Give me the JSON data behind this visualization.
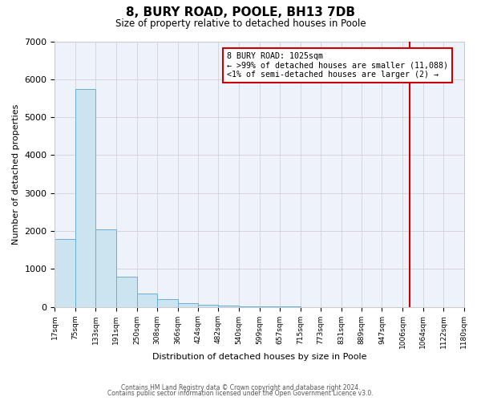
{
  "title": "8, BURY ROAD, POOLE, BH13 7DB",
  "subtitle": "Size of property relative to detached houses in Poole",
  "xlabel": "Distribution of detached houses by size in Poole",
  "ylabel": "Number of detached properties",
  "bar_values": [
    1780,
    5750,
    2050,
    800,
    350,
    200,
    100,
    55,
    25,
    15,
    8,
    3,
    0,
    0,
    0,
    0,
    0,
    0,
    0,
    0
  ],
  "bar_labels": [
    "17sqm",
    "75sqm",
    "133sqm",
    "191sqm",
    "250sqm",
    "308sqm",
    "366sqm",
    "424sqm",
    "482sqm",
    "540sqm",
    "599sqm",
    "657sqm",
    "715sqm",
    "773sqm",
    "831sqm",
    "889sqm",
    "947sqm",
    "1006sqm",
    "1064sqm",
    "1122sqm",
    "1180sqm"
  ],
  "bar_color": "#cce4f0",
  "bar_edge_color": "#6aaed6",
  "ylim": [
    0,
    7000
  ],
  "yticks": [
    0,
    1000,
    2000,
    3000,
    4000,
    5000,
    6000,
    7000
  ],
  "property_line_x": 1025,
  "property_line_label": "8 BURY ROAD: 1025sqm",
  "annotation_line1": "← >99% of detached houses are smaller (11,088)",
  "annotation_line2": "<1% of semi-detached houses are larger (2) →",
  "vline_color": "#cc0000",
  "annotation_box_color": "#cc0000",
  "footer_line1": "Contains HM Land Registry data © Crown copyright and database right 2024.",
  "footer_line2": "Contains public sector information licensed under the Open Government Licence v3.0.",
  "bin_edges": [
    17,
    75,
    133,
    191,
    250,
    308,
    366,
    424,
    482,
    540,
    599,
    657,
    715,
    773,
    831,
    889,
    947,
    1006,
    1064,
    1122,
    1180
  ],
  "bg_color": "#eef2fb"
}
